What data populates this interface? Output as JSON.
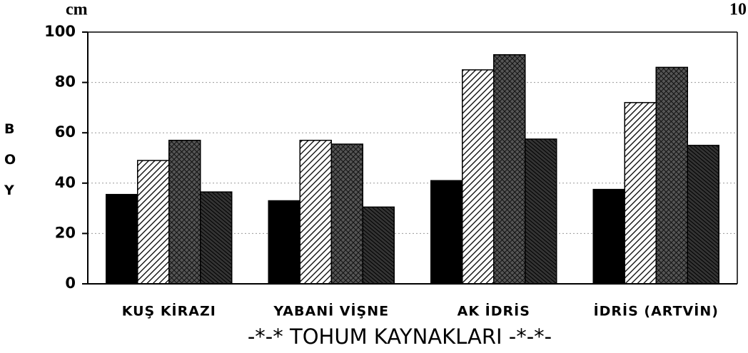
{
  "chart_data": {
    "type": "bar",
    "unit_label": "cm",
    "page_number": "10",
    "y_label": "BOY",
    "x_label": "-*-* TOHUM KAYNAKLARI -*-*-",
    "categories": [
      "KUŞ KİRAZI",
      "YABANİ VİŞNE",
      "AK İDRİS",
      "İDRİS (ARTVİN)"
    ],
    "series": [
      {
        "color": "#000000",
        "pattern": "solid",
        "values": [
          35.5,
          33,
          41,
          37.5
        ]
      },
      {
        "color": "#ffffff",
        "pattern": "diagonal",
        "values": [
          49,
          57,
          85,
          72
        ]
      },
      {
        "color": "#555555",
        "pattern": "crosshatch",
        "values": [
          57,
          55.5,
          91,
          86
        ]
      },
      {
        "color": "#333333",
        "pattern": "dense-diagonal",
        "values": [
          36.5,
          30.5,
          57.5,
          55
        ]
      }
    ],
    "ylim": [
      0,
      100
    ],
    "yticks": [
      0,
      20,
      40,
      60,
      80,
      100
    ],
    "grid": true
  }
}
